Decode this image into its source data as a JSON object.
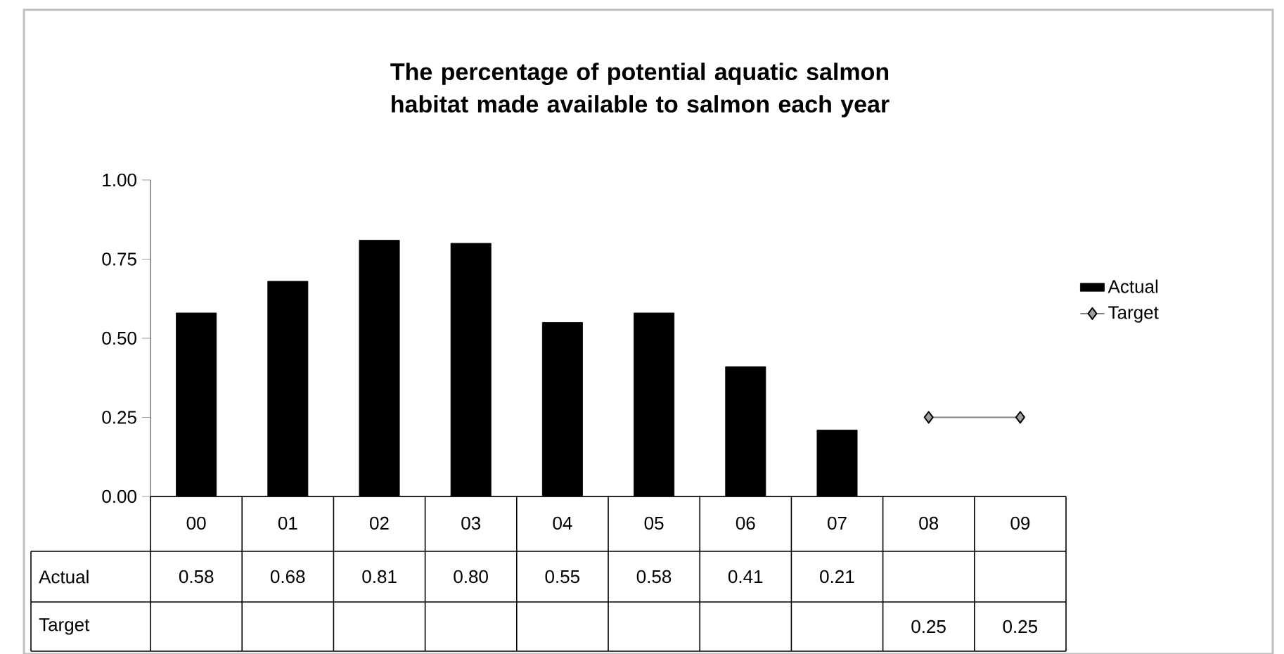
{
  "chart_data": {
    "type": "bar",
    "title": "The percentage of potential aquatic salmon habitat made available to salmon each year",
    "categories": [
      "00",
      "01",
      "02",
      "03",
      "04",
      "05",
      "06",
      "07",
      "08",
      "09"
    ],
    "series": [
      {
        "name": "Actual",
        "color": "#000000",
        "values": [
          0.58,
          0.68,
          0.81,
          0.8,
          0.55,
          0.58,
          0.41,
          0.21,
          null,
          null
        ],
        "value_labels": [
          "0.58",
          "0.68",
          "0.81",
          "0.80",
          "0.55",
          "0.58",
          "0.41",
          "0.21",
          null,
          null
        ]
      },
      {
        "name": "Target",
        "type": "line",
        "color": "#808080",
        "marker": "diamond",
        "values": [
          null,
          null,
          null,
          null,
          null,
          null,
          null,
          null,
          0.25,
          0.25
        ],
        "value_labels": [
          null,
          null,
          null,
          null,
          null,
          null,
          null,
          null,
          "0.25",
          "0.25"
        ]
      }
    ],
    "ylim": [
      0,
      1
    ],
    "yticks": [
      {
        "value": 0,
        "label": "0.00"
      },
      {
        "value": 0.25,
        "label": "0.25"
      },
      {
        "value": 0.5,
        "label": "0.50"
      },
      {
        "value": 0.75,
        "label": "0.75"
      },
      {
        "value": 1,
        "label": "1.00"
      }
    ],
    "legend": "right"
  }
}
